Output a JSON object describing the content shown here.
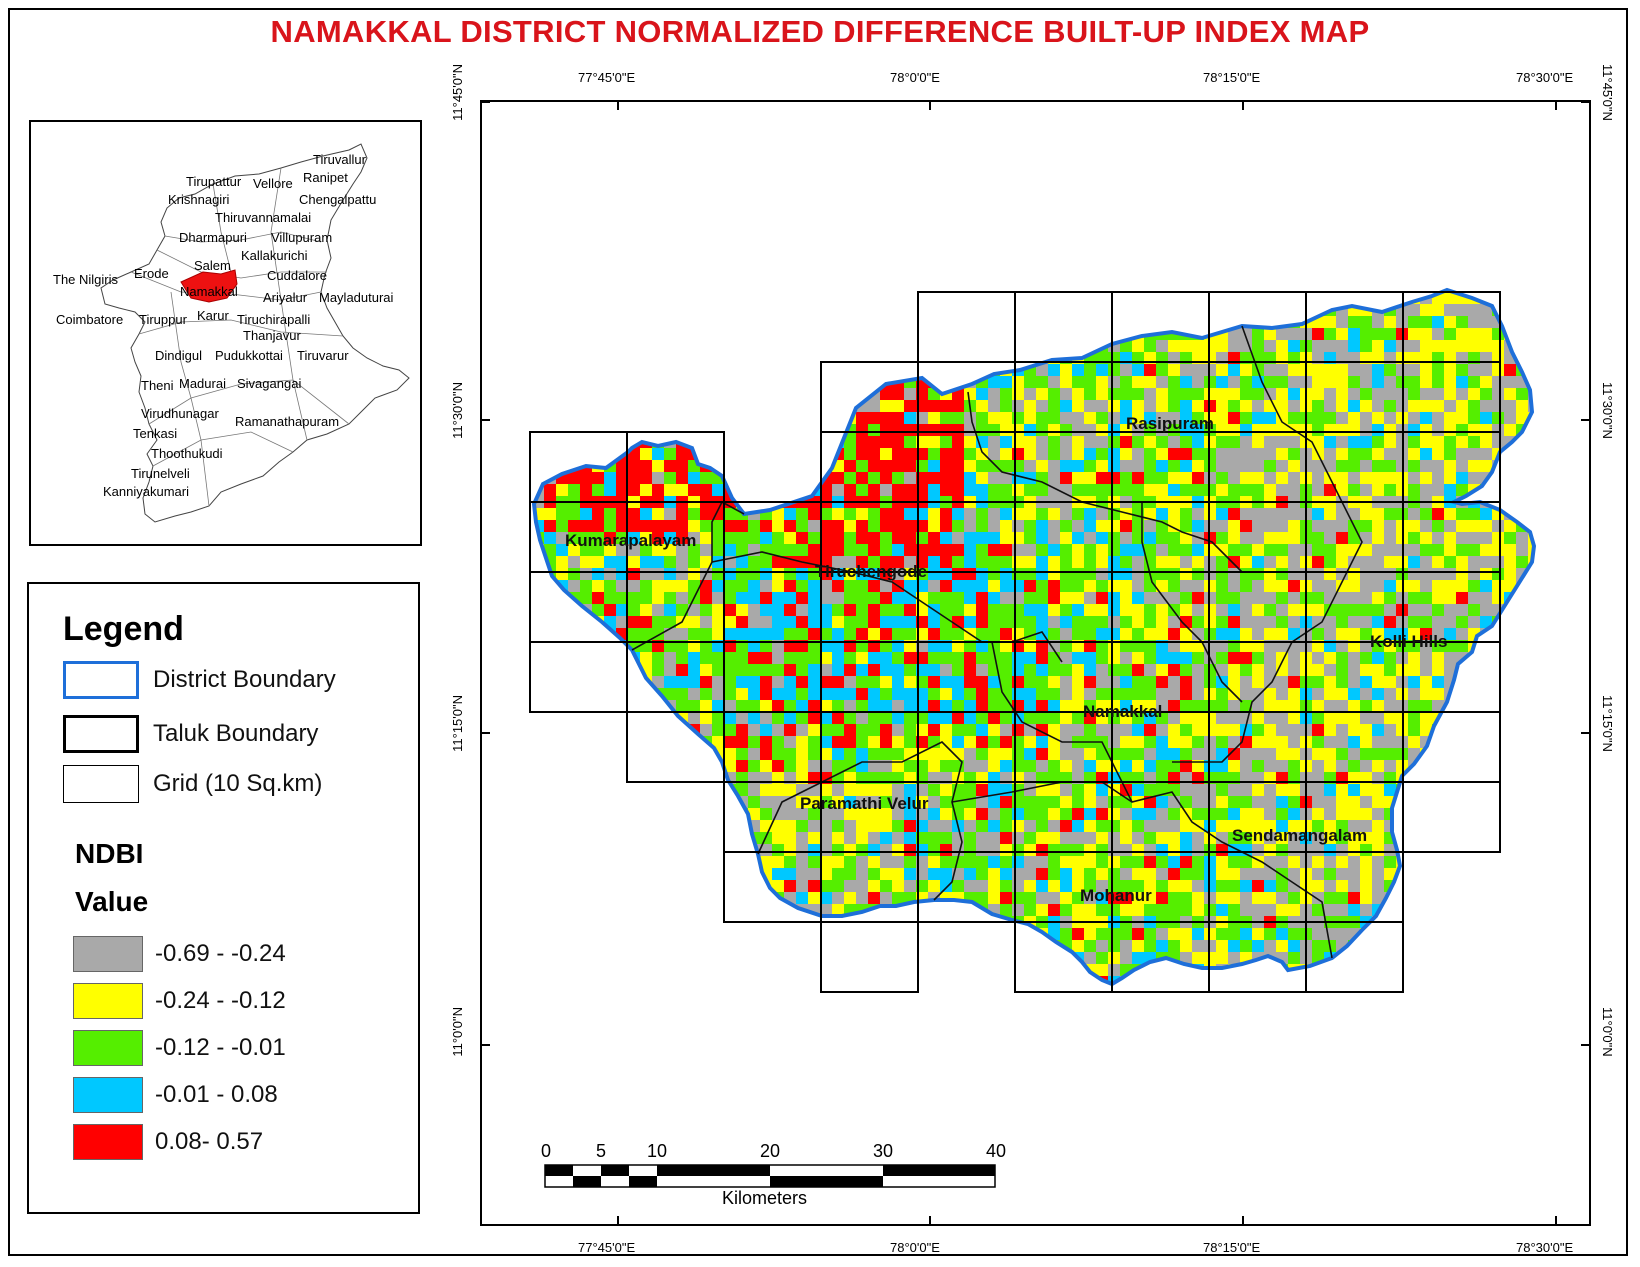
{
  "title": "NAMAKKAL DISTRICT NORMALIZED DIFFERENCE BUILT-UP INDEX MAP",
  "inset_labels": [
    {
      "text": "Tiruvallur"
    },
    {
      "text": "Tirupattur"
    },
    {
      "text": "Vellore"
    },
    {
      "text": "Ranipet"
    },
    {
      "text": "Krishnagiri"
    },
    {
      "text": "Chengalpattu"
    },
    {
      "text": "Thiruvannamalai"
    },
    {
      "text": "Dharmapuri"
    },
    {
      "text": "Villupuram"
    },
    {
      "text": "Kallakurichi"
    },
    {
      "text": "Salem"
    },
    {
      "text": "The Nilgiris"
    },
    {
      "text": "Erode"
    },
    {
      "text": "Cuddalore"
    },
    {
      "text": "Namakkal"
    },
    {
      "text": "Ariyalur"
    },
    {
      "text": "Mayladuturai"
    },
    {
      "text": "Coimbatore"
    },
    {
      "text": "Tiruppur"
    },
    {
      "text": "Karur"
    },
    {
      "text": "Tiruchirapalli"
    },
    {
      "text": "Thanjavur"
    },
    {
      "text": "Dindigul"
    },
    {
      "text": "Pudukkottai"
    },
    {
      "text": "Tiruvarur"
    },
    {
      "text": "Theni"
    },
    {
      "text": "Madurai"
    },
    {
      "text": "Sivagangai"
    },
    {
      "text": "Virudhunagar"
    },
    {
      "text": "Ramanathapuram"
    },
    {
      "text": "Tenkasi"
    },
    {
      "text": "Thoothukudi"
    },
    {
      "text": "Tirunelveli"
    },
    {
      "text": "Kanniyakumari"
    }
  ],
  "legend": {
    "title": "Legend",
    "district_boundary": "District Boundary",
    "taluk_boundary": "Taluk Boundary",
    "grid": "Grid (10 Sq.km)",
    "ndbi_heading": "NDBI",
    "value_heading": "Value",
    "classes": [
      {
        "label": "-0.69 - -0.24",
        "color": "#a9a9a9"
      },
      {
        "label": "-0.24 - -0.12",
        "color": "#ffff00"
      },
      {
        "label": "-0.12 - -0.01",
        "color": "#55ee00"
      },
      {
        "label": "-0.01 - 0.08",
        "color": "#00c8ff"
      },
      {
        "label": "0.08- 0.57",
        "color": "#ff0000"
      }
    ],
    "district_color": "#1e6fd9"
  },
  "coords": {
    "top": [
      "77°45'0\"E",
      "78°0'0\"E",
      "78°15'0\"E",
      "78°30'0\"E"
    ],
    "bottom": [
      "77°45'0\"E",
      "78°0'0\"E",
      "78°15'0\"E",
      "78°30'0\"E"
    ],
    "left": [
      "11°45'0\"N",
      "11°30'0\"N",
      "11°15'0\"N",
      "11°0'0\"N"
    ],
    "right": [
      "11°45'0\"N",
      "11°30'0\"N",
      "11°15'0\"N",
      "11°0'0\"N"
    ]
  },
  "taluks": [
    {
      "name": "Rasipuram"
    },
    {
      "name": "Kumarapalayam"
    },
    {
      "name": "Tiruchengode"
    },
    {
      "name": "Kolli Hills"
    },
    {
      "name": "Namakkal"
    },
    {
      "name": "Paramathi Velur"
    },
    {
      "name": "Sendamangalam"
    },
    {
      "name": "Mohanur"
    }
  ],
  "scale_bar": {
    "ticks": [
      "0",
      "5",
      "10",
      "20",
      "30",
      "40"
    ],
    "unit": "Kilometers"
  }
}
